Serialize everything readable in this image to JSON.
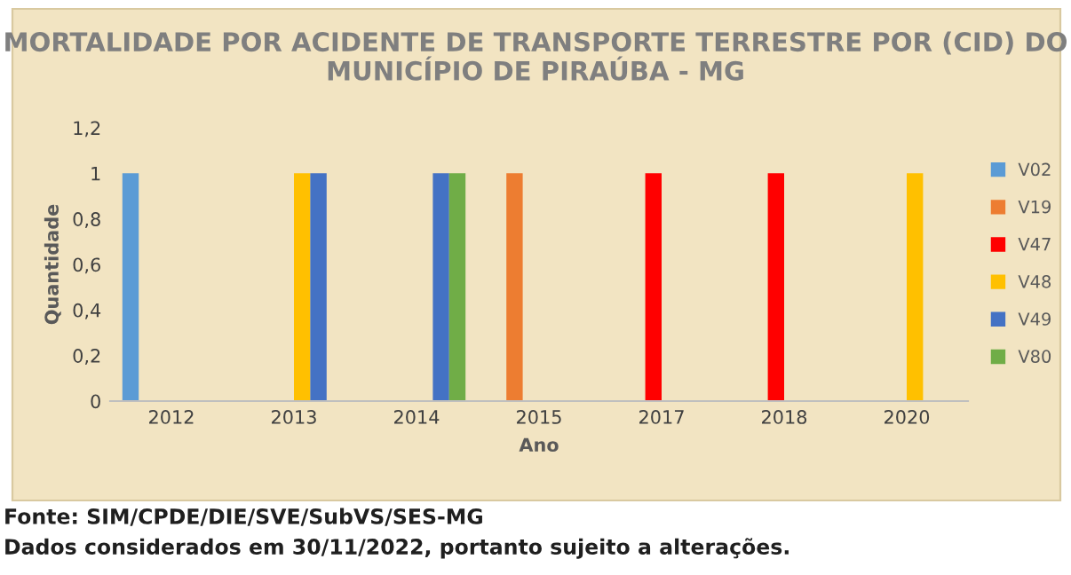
{
  "chart_data": {
    "type": "bar",
    "title": "MORTALIDADE POR ACIDENTE DE TRANSPORTE TERRESTRE POR (CID) DO MUNICÍPIO DE PIRAÚBA - MG",
    "xlabel": "Ano",
    "ylabel": "Quantidade",
    "categories": [
      "2012",
      "2013",
      "2014",
      "2015",
      "2017",
      "2018",
      "2020"
    ],
    "series": [
      {
        "name": "V02",
        "color": "#5b9bd5",
        "values": [
          1,
          null,
          null,
          null,
          null,
          null,
          null
        ]
      },
      {
        "name": "V19",
        "color": "#ed7d31",
        "values": [
          null,
          null,
          null,
          1,
          null,
          null,
          null
        ]
      },
      {
        "name": "V47",
        "color": "#ff0000",
        "values": [
          null,
          null,
          null,
          null,
          1,
          1,
          null
        ]
      },
      {
        "name": "V48",
        "color": "#ffc000",
        "values": [
          null,
          1,
          null,
          null,
          null,
          null,
          1
        ]
      },
      {
        "name": "V49",
        "color": "#4472c4",
        "values": [
          null,
          1,
          1,
          null,
          null,
          null,
          null
        ]
      },
      {
        "name": "V80",
        "color": "#70ad47",
        "values": [
          null,
          null,
          1,
          null,
          null,
          null,
          null
        ]
      }
    ],
    "ylim": [
      0,
      1.2
    ],
    "yticks": [
      {
        "value": 0,
        "label": "0"
      },
      {
        "value": 0.2,
        "label": "0,2"
      },
      {
        "value": 0.4,
        "label": "0,4"
      },
      {
        "value": 0.6,
        "label": "0,6"
      },
      {
        "value": 0.8,
        "label": "0,8"
      },
      {
        "value": 1,
        "label": "1"
      },
      {
        "value": 1.2,
        "label": "1,2"
      }
    ],
    "grid": false,
    "legend": "right",
    "annotations": [
      "Fonte: SIM/CPDE/DIE/SVE/SubVS/SES-MG",
      "Dados considerados em 30/11/2022, portanto sujeito a alterações."
    ]
  }
}
